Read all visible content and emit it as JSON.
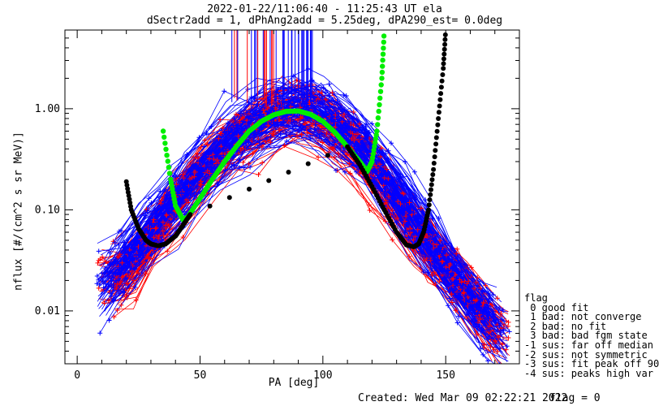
{
  "chart_data": {
    "type": "scatter",
    "title": "2022-01-22/11:06:40 - 11:25:43 UT ela",
    "subtitle": "dSectr2add = 1, dPhAng2add = 5.25deg, dPA290_est=   0.0deg",
    "xlabel": "PA [deg]",
    "ylabel": "nflux [#/(cm^2 s sr MeV)]",
    "xlim": [
      -5,
      180
    ],
    "ylim": [
      0.003,
      6.0
    ],
    "yscale": "log",
    "x_ticks": [
      0,
      50,
      100,
      150
    ],
    "y_ticks": [
      0.01,
      0.1,
      1.0
    ],
    "y_tick_labels": [
      "0.01",
      "0.10",
      "1.00"
    ],
    "series": [
      {
        "color": "#ff0000",
        "description_points": [
          [
            20,
            0.02
          ],
          [
            35,
            0.08
          ],
          [
            50,
            0.22
          ],
          [
            65,
            0.5
          ],
          [
            80,
            0.85
          ],
          [
            88,
            0.95
          ],
          [
            95,
            0.9
          ],
          [
            110,
            0.5
          ],
          [
            125,
            0.17
          ],
          [
            140,
            0.05
          ],
          [
            155,
            0.02
          ],
          [
            170,
            0.006
          ]
        ]
      },
      {
        "color": "#0000ff",
        "description_points": [
          [
            10,
            0.015
          ],
          [
            30,
            0.06
          ],
          [
            45,
            0.16
          ],
          [
            60,
            0.4
          ],
          [
            75,
            0.75
          ],
          [
            88,
            0.95
          ],
          [
            100,
            0.85
          ],
          [
            115,
            0.45
          ],
          [
            130,
            0.14
          ],
          [
            145,
            0.04
          ],
          [
            160,
            0.012
          ],
          [
            175,
            0.005
          ]
        ]
      },
      {
        "color": "#00ee00",
        "x": [
          35,
          38,
          40,
          43,
          45,
          50,
          55,
          60,
          65,
          70,
          75,
          80,
          85,
          90,
          95,
          100,
          105,
          110,
          115,
          118,
          120,
          122,
          124,
          125
        ],
        "y": [
          0.6,
          0.2,
          0.11,
          0.08,
          0.085,
          0.13,
          0.2,
          0.3,
          0.43,
          0.6,
          0.75,
          0.87,
          0.94,
          0.95,
          0.88,
          0.75,
          0.58,
          0.42,
          0.3,
          0.24,
          0.3,
          0.6,
          2.0,
          6.0
        ]
      },
      {
        "color": "#000000",
        "x": [
          20,
          22,
          25,
          28,
          30,
          33,
          36,
          40,
          43,
          46,
          110,
          115,
          120,
          125,
          130,
          134,
          137,
          139,
          141,
          143,
          145,
          147,
          149,
          150
        ],
        "y": [
          0.19,
          0.1,
          0.065,
          0.05,
          0.046,
          0.044,
          0.046,
          0.055,
          0.07,
          0.09,
          0.42,
          0.28,
          0.17,
          0.1,
          0.06,
          0.045,
          0.043,
          0.046,
          0.06,
          0.1,
          0.25,
          0.8,
          2.5,
          6.0
        ]
      }
    ],
    "legend": {
      "title": "flag",
      "entries": [
        " 0 good fit",
        " 1 bad: not converge",
        " 2 bad: no fit",
        " 3 bad: bad fgm state",
        "-1 sus: far off median",
        "-2 sus: not symmetric",
        "-3 sus: fit peak off 90",
        "-4 sus: peaks high var"
      ],
      "placement": "right"
    },
    "grid": false
  },
  "footer": {
    "created": "Created: Wed Mar 09 02:22:21 2022",
    "flag": "flag = 0"
  },
  "colors": {
    "red": "#ff0000",
    "blue": "#0000ff",
    "green": "#00ee00",
    "black": "#000000",
    "background": "#ffffff"
  }
}
